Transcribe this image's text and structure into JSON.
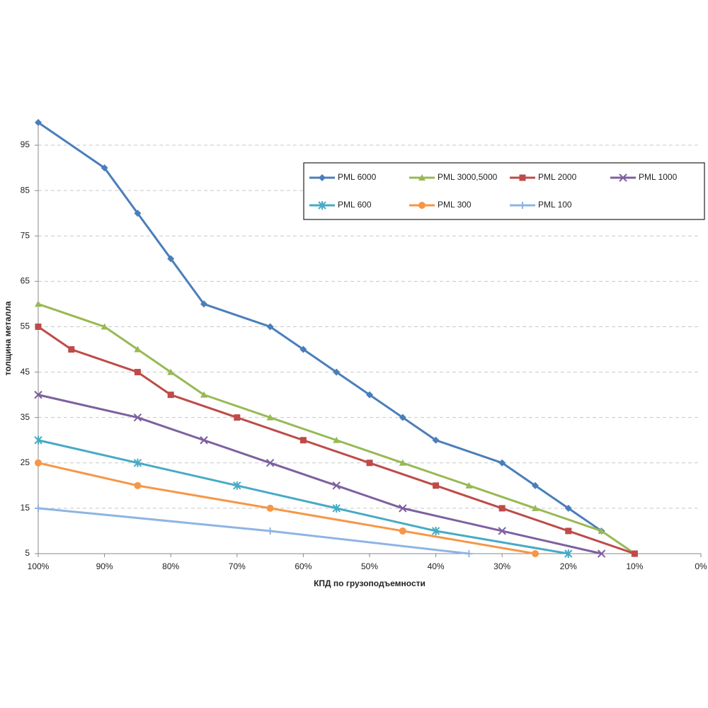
{
  "chart_data": {
    "type": "line",
    "x_label": "КПД по грузоподъемности",
    "y_label": "толщина металла",
    "xlim": [
      100,
      0
    ],
    "xticks": [
      {
        "value": 100,
        "label": "100%"
      },
      {
        "value": 90,
        "label": "90%"
      },
      {
        "value": 80,
        "label": "80%"
      },
      {
        "value": 70,
        "label": "70%"
      },
      {
        "value": 60,
        "label": "60%"
      },
      {
        "value": 50,
        "label": "50%"
      },
      {
        "value": 40,
        "label": "40%"
      },
      {
        "value": 30,
        "label": "30%"
      },
      {
        "value": 20,
        "label": "20%"
      },
      {
        "value": 10,
        "label": "10%"
      },
      {
        "value": 0,
        "label": "0%"
      }
    ],
    "ylim": [
      5,
      100
    ],
    "yticks": [
      5,
      15,
      25,
      35,
      45,
      55,
      65,
      75,
      85,
      95
    ],
    "grid": true,
    "legend": "top-right",
    "series": [
      {
        "name": "PML 6000",
        "color": "#4a7ebb",
        "marker": "diamond",
        "x": [
          100,
          90,
          85,
          80,
          75,
          65,
          60,
          55,
          50,
          45,
          40,
          30,
          25,
          20,
          15
        ],
        "values": [
          100,
          90,
          80,
          70,
          60,
          55,
          50,
          45,
          40,
          35,
          30,
          25,
          20,
          15,
          10
        ]
      },
      {
        "name": "PML 3000,5000",
        "color": "#98b954",
        "marker": "triangle",
        "x": [
          100,
          90,
          85,
          80,
          75,
          65,
          55,
          45,
          35,
          25,
          15,
          10
        ],
        "values": [
          60,
          55,
          50,
          45,
          40,
          35,
          30,
          25,
          20,
          15,
          10,
          5
        ]
      },
      {
        "name": "PML 2000",
        "color": "#be4b48",
        "marker": "square",
        "x": [
          100,
          95,
          85,
          80,
          70,
          60,
          50,
          40,
          30,
          20,
          10
        ],
        "values": [
          55,
          50,
          45,
          40,
          35,
          30,
          25,
          20,
          15,
          10,
          5
        ]
      },
      {
        "name": "PML 1000",
        "color": "#7d60a0",
        "marker": "x",
        "x": [
          100,
          85,
          75,
          65,
          55,
          45,
          30,
          15
        ],
        "values": [
          40,
          35,
          30,
          25,
          20,
          15,
          10,
          5
        ]
      },
      {
        "name": "PML 600",
        "color": "#46aac5",
        "marker": "star",
        "x": [
          100,
          85,
          70,
          55,
          40,
          20
        ],
        "values": [
          30,
          25,
          20,
          15,
          10,
          5
        ]
      },
      {
        "name": "PML 300",
        "color": "#f79646",
        "marker": "circle",
        "x": [
          100,
          85,
          65,
          45,
          25
        ],
        "values": [
          25,
          20,
          15,
          10,
          5
        ]
      },
      {
        "name": "PML 100",
        "color": "#8eb4e3",
        "marker": "plus",
        "x": [
          100,
          65,
          35
        ],
        "values": [
          15,
          10,
          5
        ]
      }
    ]
  }
}
